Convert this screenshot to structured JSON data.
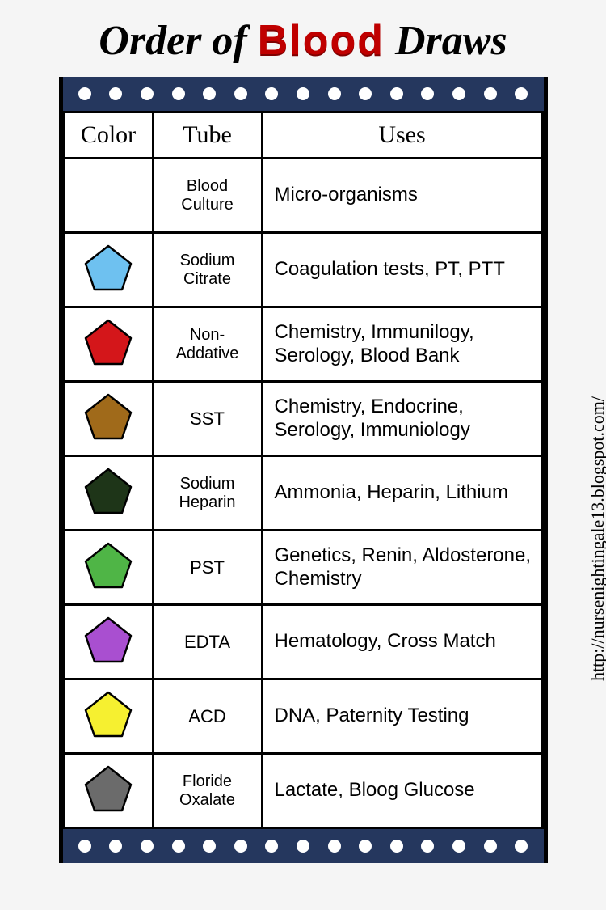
{
  "title": {
    "part1": "Order of ",
    "blood": "Blood",
    "part2": " Draws"
  },
  "headers": {
    "color": "Color",
    "tube": "Tube",
    "uses": "Uses"
  },
  "strip": {
    "background": "#25375e",
    "dot_color": "#ffffff",
    "dot_count": 15
  },
  "pentagon_stroke": "#000000",
  "rows": [
    {
      "color": null,
      "tube": "Blood Culture",
      "tube_small": true,
      "uses": "Micro-organisms"
    },
    {
      "color": "#6ec1f0",
      "tube": "Sodium Citrate",
      "tube_small": true,
      "uses": "Coagulation tests, PT, PTT"
    },
    {
      "color": "#d4161a",
      "tube": "Non-Addative",
      "tube_small": true,
      "uses": "Chemistry, Immunilogy, Serology, Blood Bank"
    },
    {
      "color": "#a06a1a",
      "tube": "SST",
      "tube_small": false,
      "uses": "Chemistry, Endocrine, Serology, Immuniology"
    },
    {
      "color": "#1e3518",
      "tube": "Sodium Heparin",
      "tube_small": true,
      "uses": "Ammonia, Heparin, Lithium"
    },
    {
      "color": "#4fb546",
      "tube": "PST",
      "tube_small": false,
      "uses": "Genetics, Renin, Aldosterone, Chemistry"
    },
    {
      "color": "#a94fd0",
      "tube": "EDTA",
      "tube_small": false,
      "uses": "Hematology, Cross Match"
    },
    {
      "color": "#f6f030",
      "tube": "ACD",
      "tube_small": false,
      "uses": "DNA, Paternity Testing"
    },
    {
      "color": "#6b6b6b",
      "tube": "Floride Oxalate",
      "tube_small": true,
      "uses": "Lactate, Bloog Glucose"
    }
  ],
  "watermark": "http://nursenightingale13.blogspot.com/"
}
